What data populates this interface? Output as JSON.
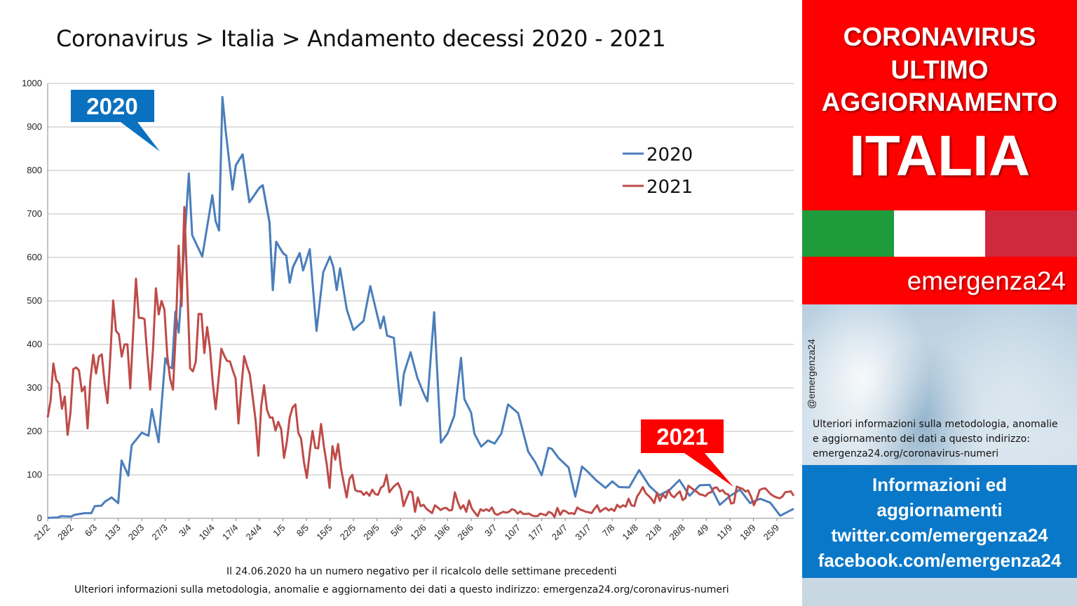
{
  "chart_data": {
    "type": "line",
    "title": "Coronavirus > Italia > Andamento decessi 2020 - 2021",
    "xlabel": "",
    "ylabel": "",
    "ylim": [
      0,
      1000
    ],
    "yticks": [
      0,
      100,
      200,
      300,
      400,
      500,
      600,
      700,
      800,
      900,
      1000
    ],
    "x_tick_labels": [
      "21/2",
      "28/2",
      "6/3",
      "13/3",
      "20/3",
      "27/3",
      "3/4",
      "10/4",
      "17/4",
      "24/4",
      "1/5",
      "8/5",
      "15/5",
      "22/5",
      "29/5",
      "5/6",
      "12/6",
      "19/6",
      "26/6",
      "3/7",
      "10/7",
      "17/7",
      "24/7",
      "31/7",
      "7/8",
      "14/8",
      "21/8",
      "28/8",
      "4/9",
      "11/9",
      "18/9",
      "25/9"
    ],
    "grid": true,
    "legend_position": "top-right",
    "colors": {
      "2020": "#4a7ebb",
      "2021": "#be4b48"
    },
    "series": [
      {
        "name": "2020",
        "days": [
          0,
          3,
          4,
          7,
          8,
          11,
          13,
          14,
          16,
          17,
          19,
          21,
          22,
          24,
          25,
          28,
          30,
          31,
          33,
          35,
          36,
          37,
          38,
          39,
          42,
          43,
          46,
          49,
          50,
          51,
          52,
          53,
          55,
          56,
          58,
          60,
          63,
          64,
          66,
          67,
          68,
          70,
          71,
          72,
          73,
          75,
          76,
          78,
          80,
          82,
          84,
          85,
          86,
          87,
          89,
          91,
          94,
          96,
          99,
          100,
          101,
          103,
          105,
          106,
          108,
          110,
          112,
          113,
          115,
          117,
          119,
          121,
          123,
          124,
          126,
          127,
          129,
          131,
          133,
          135,
          137,
          140,
          143,
          145,
          147,
          149,
          150,
          152,
          155,
          157,
          159,
          161,
          163,
          166,
          168,
          170,
          173,
          176,
          179,
          182,
          185,
          188,
          191,
          194,
          197,
          200,
          203,
          206,
          209,
          212,
          215,
          218,
          221
        ],
        "values": [
          1,
          2,
          5,
          4,
          8,
          12,
          12,
          28,
          29,
          38,
          48,
          35,
          133,
          98,
          168,
          197,
          190,
          251,
          175,
          368,
          349,
          345,
          475,
          427,
          793,
          651,
          602,
          743,
          683,
          662,
          969,
          889,
          756,
          812,
          837,
          727,
          760,
          766,
          681,
          525,
          636,
          610,
          604,
          542,
          578,
          610,
          570,
          619,
          431,
          566,
          602,
          578,
          525,
          575,
          480,
          433,
          454,
          534,
          437,
          464,
          420,
          415,
          260,
          333,
          382,
          323,
          285,
          269,
          474,
          174,
          195,
          236,
          369,
          274,
          243,
          194,
          165,
          179,
          172,
          195,
          262,
          242,
          153,
          130,
          99,
          162,
          160,
          139,
          117,
          50,
          119,
          105,
          89,
          70,
          85,
          72,
          71,
          111,
          75,
          53,
          65,
          88,
          52,
          76,
          77,
          31,
          51,
          66,
          35,
          45,
          36,
          6,
          18
        ],
        "tail_values": [
          24,
          15,
          9,
          7,
          4,
          5,
          12,
          3,
          18,
          11,
          10,
          30,
          7,
          11,
          5,
          14,
          15,
          9,
          12,
          13,
          5,
          6,
          3,
          4,
          6,
          8,
          3,
          8,
          6,
          10,
          5,
          3,
          12,
          6,
          3,
          4,
          6,
          11,
          5,
          10,
          4,
          6,
          3,
          8,
          5,
          12,
          9,
          6,
          12,
          14,
          7,
          18,
          13,
          17,
          25,
          16,
          19,
          22,
          23,
          18,
          17,
          20,
          21,
          24,
          18,
          17,
          22
        ]
      },
      {
        "name": "2021",
        "values": [
          232,
          270,
          356,
          318,
          310,
          252,
          280,
          192,
          243,
          343,
          347,
          340,
          292,
          303,
          207,
          319,
          376,
          333,
          372,
          377,
          312,
          265,
          372,
          501,
          431,
          423,
          372,
          400,
          400,
          299,
          424,
          551,
          461,
          461,
          458,
          374,
          296,
          392,
          529,
          469,
          500,
          480,
          373,
          321,
          296,
          428,
          627,
          488,
          716,
          535,
          345,
          338,
          360,
          470,
          470,
          380,
          440,
          390,
          310,
          251,
          320,
          390,
          374,
          362,
          361,
          340,
          322,
          218,
          300,
          373,
          350,
          331,
          279,
          226,
          144,
          259,
          306,
          250,
          232,
          232,
          202,
          222,
          205,
          139,
          176,
          232,
          255,
          262,
          197,
          183,
          129,
          93,
          150,
          201,
          162,
          161,
          217,
          166,
          124,
          70,
          166,
          135,
          171,
          115,
          81,
          48,
          91,
          100,
          65,
          62,
          62,
          54,
          60,
          52,
          66,
          56,
          54,
          70,
          75,
          100,
          60,
          69,
          76,
          81,
          67,
          28,
          46,
          62,
          60,
          15,
          48,
          28,
          31,
          22,
          17,
          12,
          30,
          25,
          19,
          23,
          24,
          18,
          19,
          60,
          38,
          22,
          30,
          15,
          41,
          22,
          13,
          5,
          21,
          17,
          21,
          17,
          25,
          11,
          8,
          12,
          15,
          13,
          15,
          21,
          19,
          11,
          16,
          10,
          10,
          11,
          7,
          5,
          5,
          11,
          9,
          7,
          15,
          12,
          3,
          24,
          8,
          18,
          16,
          11,
          12,
          10,
          25,
          20,
          18,
          15,
          14,
          12,
          22,
          30,
          15,
          20,
          24,
          18,
          22,
          17,
          31,
          25,
          30,
          27,
          45,
          30,
          28,
          50,
          60,
          72,
          58,
          52,
          45,
          35,
          59,
          40,
          55,
          47,
          65,
          53,
          48,
          56,
          62,
          42,
          47,
          75,
          70,
          65,
          61,
          55,
          54,
          51,
          58,
          60,
          70,
          71,
          62,
          65,
          57,
          55,
          34,
          36,
          73,
          70,
          68,
          62,
          64,
          50,
          30,
          44,
          65,
          68,
          69,
          62,
          55,
          51,
          48,
          46,
          50,
          60,
          61,
          62,
          52
        ]
      }
    ],
    "legend": [
      {
        "label": "2020",
        "color": "#4a7ebb"
      },
      {
        "label": "2021",
        "color": "#be4b48"
      }
    ],
    "annotations": {
      "callout_2020": "2020",
      "callout_2021": "2021"
    }
  },
  "notes": {
    "negative_note": "Il 24.06.2020 ha un numero negativo per il ricalcolo delle settimane precedenti",
    "methodology": "Ulteriori informazioni sulla metodologia, anomalie e aggiornamento dei dati a questo indirizzo: emergenza24.org/coronavirus-numeri"
  },
  "sidebar": {
    "heading_lines": [
      "CORONAVIRUS",
      "ULTIMO",
      "AGGIORNAMENTO"
    ],
    "country": "ITALIA",
    "flag_colors": [
      "#1e9b3b",
      "#ffffff",
      "#d0293d"
    ],
    "brand": "emergenza24",
    "handle": "@emergenza24",
    "info_lines": [
      "Ulteriori informazioni sulla metodologia, anomalie",
      "e aggiornamento dei dati a questo indirizzo:",
      "emergenza24.org/coronavirus-numeri"
    ],
    "contact_lines": [
      "Informazioni ed",
      "aggiornamenti",
      "twitter.com/emergenza24",
      "facebook.com/emergenza24"
    ],
    "accent_red": "#ff0000",
    "accent_blue": "#0a78c8"
  }
}
